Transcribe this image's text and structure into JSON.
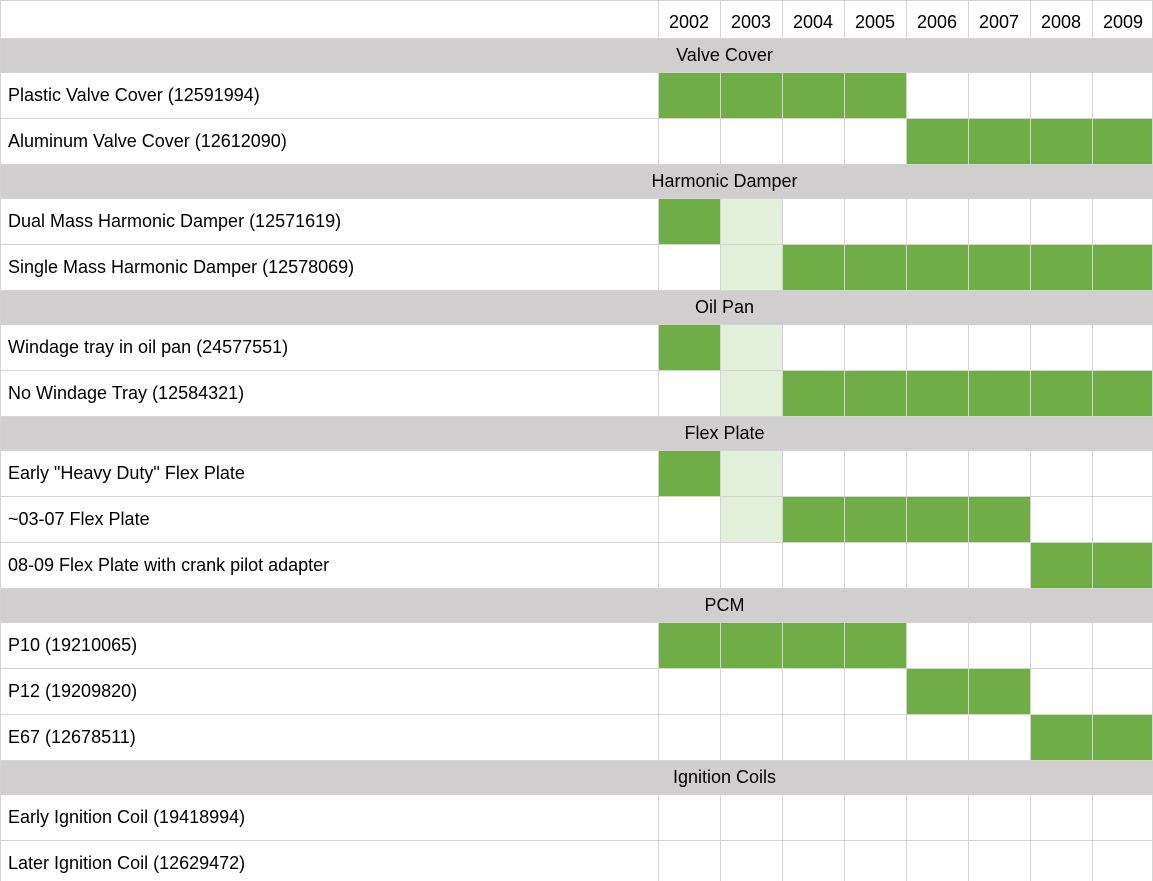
{
  "chart_data": {
    "type": "table",
    "columns": [
      "2002",
      "2003",
      "2004",
      "2005",
      "2006",
      "2007",
      "2008",
      "2009"
    ],
    "colors": {
      "production": "#70ad47",
      "transition": "#e2efda",
      "section_band": "#d0cece",
      "grid": "#d4d4d4"
    },
    "sections": [
      {
        "title": "Valve Cover",
        "rows": [
          {
            "label": "Plastic Valve Cover (12591994)",
            "ranges": [
              {
                "start": "2002",
                "end": "2005",
                "kind": "production"
              }
            ]
          },
          {
            "label": "Aluminum Valve Cover (12612090)",
            "ranges": [
              {
                "start": "2006",
                "end": "2009",
                "kind": "production"
              }
            ]
          }
        ]
      },
      {
        "title": "Harmonic Damper",
        "rows": [
          {
            "label": "Dual Mass Harmonic Damper (12571619)",
            "ranges": [
              {
                "start": "2002",
                "end": "2002",
                "kind": "production"
              },
              {
                "start": "2003",
                "end": "2003",
                "kind": "transition"
              }
            ]
          },
          {
            "label": "Single Mass Harmonic Damper (12578069)",
            "ranges": [
              {
                "start": "2003",
                "end": "2003",
                "kind": "transition"
              },
              {
                "start": "2004",
                "end": "2009",
                "kind": "production"
              }
            ]
          }
        ]
      },
      {
        "title": "Oil Pan",
        "rows": [
          {
            "label": "Windage tray in oil pan (24577551)",
            "ranges": [
              {
                "start": "2002",
                "end": "2002",
                "kind": "production"
              },
              {
                "start": "2003",
                "end": "2003",
                "kind": "transition"
              }
            ]
          },
          {
            "label": "No Windage Tray (12584321)",
            "ranges": [
              {
                "start": "2003",
                "end": "2003",
                "kind": "transition"
              },
              {
                "start": "2004",
                "end": "2009",
                "kind": "production"
              }
            ]
          }
        ]
      },
      {
        "title": "Flex Plate",
        "rows": [
          {
            "label": "Early \"Heavy Duty\" Flex Plate",
            "ranges": [
              {
                "start": "2002",
                "end": "2002",
                "kind": "production"
              },
              {
                "start": "2003",
                "end": "2003",
                "kind": "transition"
              }
            ]
          },
          {
            "label": "~03-07 Flex Plate",
            "ranges": [
              {
                "start": "2003",
                "end": "2003",
                "kind": "transition"
              },
              {
                "start": "2004",
                "end": "2007",
                "kind": "production"
              }
            ]
          },
          {
            "label": "08-09 Flex Plate with crank pilot adapter",
            "ranges": [
              {
                "start": "2008",
                "end": "2009",
                "kind": "production"
              }
            ]
          }
        ]
      },
      {
        "title": "PCM",
        "rows": [
          {
            "label": "P10 (19210065)",
            "ranges": [
              {
                "start": "2002",
                "end": "2005",
                "kind": "production"
              }
            ]
          },
          {
            "label": "P12 (19209820)",
            "ranges": [
              {
                "start": "2006",
                "end": "2007",
                "kind": "production"
              }
            ]
          },
          {
            "label": "E67 (12678511)",
            "ranges": [
              {
                "start": "2008",
                "end": "2009",
                "kind": "production"
              }
            ]
          }
        ]
      },
      {
        "title": "Ignition Coils",
        "rows": [
          {
            "label": "Early Ignition Coil (19418994)",
            "ranges": []
          },
          {
            "label": "Later Ignition Coil (12629472)",
            "ranges": []
          }
        ]
      }
    ]
  }
}
